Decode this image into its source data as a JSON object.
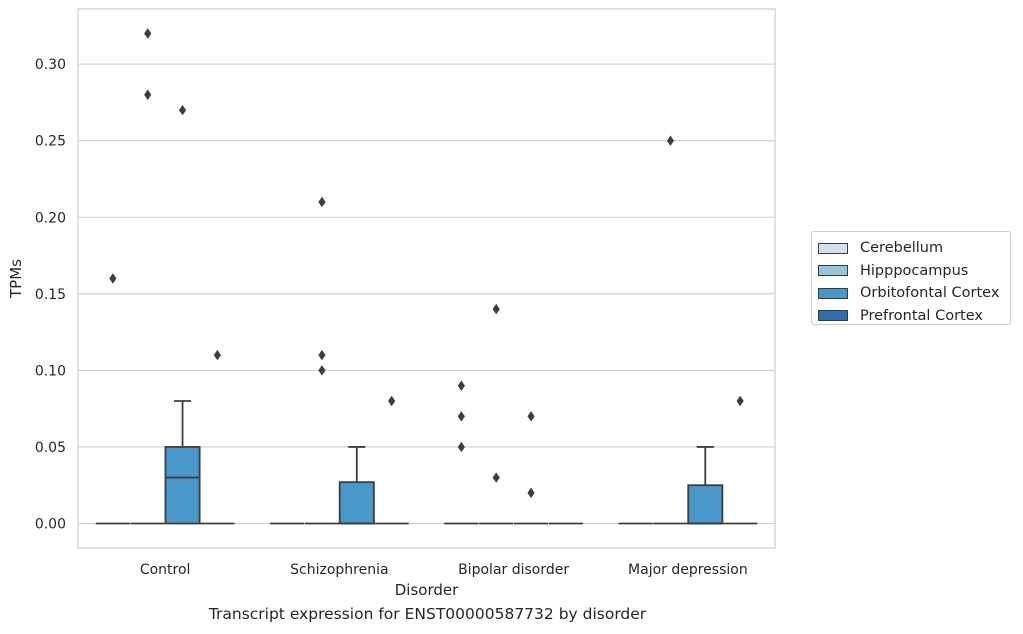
{
  "chart_data": {
    "type": "box",
    "caption": "Transcript expression for ENST00000587732 by disorder",
    "xlabel": "Disorder",
    "ylabel": "TPMs",
    "ylim": [
      -0.016,
      0.336
    ],
    "yticks": [
      "0.00",
      "0.05",
      "0.10",
      "0.15",
      "0.20",
      "0.25",
      "0.30"
    ],
    "ytick_values": [
      0,
      0.05,
      0.1,
      0.15,
      0.2,
      0.25,
      0.3
    ],
    "grid": true,
    "legend_position": "right",
    "categories": [
      "Control",
      "Schizophrenia",
      "Bipolar disorder",
      "Major depression"
    ],
    "series": [
      {
        "name": "Cerebellum",
        "color": "#d0e1f2",
        "boxes": [
          {
            "q1": 0,
            "median": 0,
            "q3": 0,
            "whisker_low": 0,
            "whisker_high": 0,
            "outliers": [
              0.16
            ]
          },
          {
            "q1": 0,
            "median": 0,
            "q3": 0,
            "whisker_low": 0,
            "whisker_high": 0,
            "outliers": []
          },
          {
            "q1": 0,
            "median": 0,
            "q3": 0,
            "whisker_low": 0,
            "whisker_high": 0,
            "outliers": [
              0.09,
              0.07,
              0.05
            ]
          },
          {
            "q1": 0,
            "median": 0,
            "q3": 0,
            "whisker_low": 0,
            "whisker_high": 0,
            "outliers": []
          }
        ]
      },
      {
        "name": "Hipppocampus",
        "color": "#94c4df",
        "boxes": [
          {
            "q1": 0,
            "median": 0,
            "q3": 0,
            "whisker_low": 0,
            "whisker_high": 0,
            "outliers": [
              0.32,
              0.28
            ]
          },
          {
            "q1": 0,
            "median": 0,
            "q3": 0,
            "whisker_low": 0,
            "whisker_high": 0,
            "outliers": [
              0.21,
              0.11,
              0.1
            ]
          },
          {
            "q1": 0,
            "median": 0,
            "q3": 0,
            "whisker_low": 0,
            "whisker_high": 0,
            "outliers": [
              0.14,
              0.03
            ]
          },
          {
            "q1": 0,
            "median": 0,
            "q3": 0,
            "whisker_low": 0,
            "whisker_high": 0,
            "outliers": [
              0.25
            ]
          }
        ]
      },
      {
        "name": "Orbitofontal Cortex",
        "color": "#4a98c9",
        "boxes": [
          {
            "q1": 0,
            "median": 0.03,
            "q3": 0.05,
            "whisker_low": 0,
            "whisker_high": 0.08,
            "outliers": [
              0.27
            ]
          },
          {
            "q1": 0,
            "median": 0,
            "q3": 0.027,
            "whisker_low": 0,
            "whisker_high": 0.05,
            "outliers": []
          },
          {
            "q1": 0,
            "median": 0,
            "q3": 0,
            "whisker_low": 0,
            "whisker_high": 0,
            "outliers": [
              0.07,
              0.02
            ]
          },
          {
            "q1": 0,
            "median": 0,
            "q3": 0.025,
            "whisker_low": 0,
            "whisker_high": 0.05,
            "outliers": []
          }
        ]
      },
      {
        "name": "Prefrontal Cortex",
        "color": "#2f6ea8",
        "boxes": [
          {
            "q1": 0,
            "median": 0,
            "q3": 0,
            "whisker_low": 0,
            "whisker_high": 0,
            "outliers": [
              0.11
            ]
          },
          {
            "q1": 0,
            "median": 0,
            "q3": 0,
            "whisker_low": 0,
            "whisker_high": 0,
            "outliers": [
              0.08
            ]
          },
          {
            "q1": 0,
            "median": 0,
            "q3": 0,
            "whisker_low": 0,
            "whisker_high": 0,
            "outliers": []
          },
          {
            "q1": 0,
            "median": 0,
            "q3": 0,
            "whisker_low": 0,
            "whisker_high": 0,
            "outliers": [
              0.08
            ]
          }
        ]
      }
    ]
  }
}
